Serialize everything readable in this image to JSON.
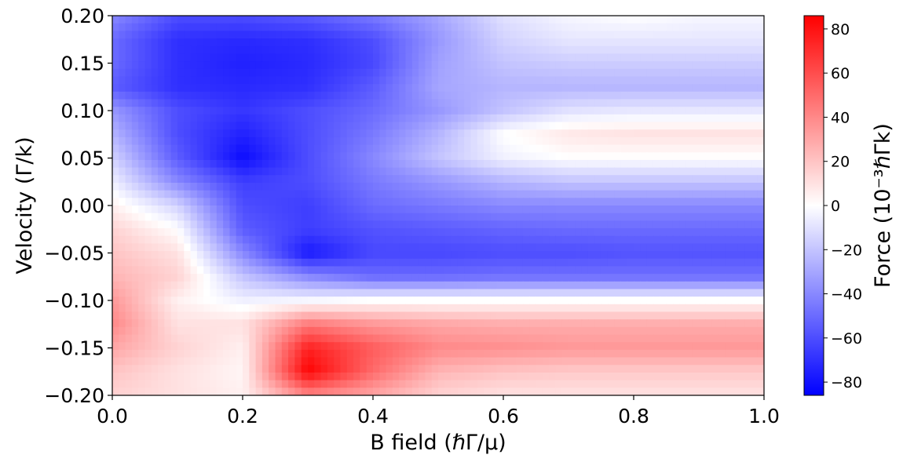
{
  "chart_data": {
    "type": "heatmap",
    "title": "",
    "xlabel": "B field (ℏΓ/μ)",
    "ylabel": "Velocity (Γ/k)",
    "xlim": [
      0.0,
      1.0
    ],
    "ylim": [
      -0.2,
      0.2
    ],
    "x_ticks": [
      0.0,
      0.2,
      0.4,
      0.6,
      0.8,
      1.0
    ],
    "x_tick_labels": [
      "0.0",
      "0.2",
      "0.4",
      "0.6",
      "0.8",
      "1.0"
    ],
    "y_ticks": [
      -0.2,
      -0.15,
      -0.1,
      -0.05,
      0.0,
      0.05,
      0.1,
      0.15,
      0.2
    ],
    "y_tick_labels": [
      "−0.20",
      "−0.15",
      "−0.10",
      "−0.05",
      "0.00",
      "0.05",
      "0.10",
      "0.15",
      "0.20"
    ],
    "colorbar": {
      "label": "Force (10⁻³ℏΓk)",
      "range": [
        -86,
        86
      ],
      "ticks": [
        -80,
        -60,
        -40,
        -20,
        0,
        20,
        40,
        60,
        80
      ],
      "tick_labels": [
        "−80",
        "−60",
        "−40",
        "−20",
        "0",
        "20",
        "40",
        "60",
        "80"
      ],
      "colormap": "bwr",
      "colors": [
        "#0000ff",
        "#ffffff",
        "#ff0000"
      ]
    },
    "grid": {
      "x": [
        0.0,
        0.1,
        0.2,
        0.3,
        0.4,
        0.5,
        0.6,
        0.7,
        0.8,
        0.9,
        1.0
      ],
      "y": [
        0.2,
        0.175,
        0.15,
        0.125,
        0.1,
        0.075,
        0.05,
        0.025,
        0.0,
        -0.025,
        -0.05,
        -0.075,
        -0.1,
        -0.125,
        -0.15,
        -0.175,
        -0.2
      ],
      "z": [
        [
          -40,
          -60,
          -60,
          -55,
          -45,
          -30,
          -10,
          -3,
          0,
          -3,
          -3
        ],
        [
          -50,
          -70,
          -72,
          -70,
          -60,
          -35,
          -15,
          -8,
          -8,
          -8,
          -8
        ],
        [
          -50,
          -70,
          -75,
          -72,
          -62,
          -32,
          -20,
          -17,
          -17,
          -17,
          -17
        ],
        [
          -55,
          -70,
          -72,
          -70,
          -55,
          -30,
          -25,
          -25,
          -25,
          -25,
          -25
        ],
        [
          -35,
          -60,
          -68,
          -60,
          -50,
          -35,
          -20,
          -10,
          -8,
          -8,
          -8
        ],
        [
          -25,
          -60,
          -75,
          -60,
          -45,
          -25,
          0,
          8,
          10,
          10,
          10
        ],
        [
          -15,
          -55,
          -82,
          -60,
          -40,
          -20,
          -5,
          0,
          0,
          0,
          0
        ],
        [
          -5,
          -40,
          -65,
          -60,
          -45,
          -35,
          -25,
          -20,
          -20,
          -20,
          -20
        ],
        [
          5,
          -15,
          -60,
          -65,
          -50,
          -45,
          -40,
          -40,
          -40,
          -40,
          -40
        ],
        [
          15,
          0,
          -55,
          -65,
          -58,
          -55,
          -52,
          -50,
          -50,
          -50,
          -50
        ],
        [
          20,
          10,
          -40,
          -78,
          -62,
          -62,
          -60,
          -60,
          -58,
          -58,
          -58
        ],
        [
          25,
          15,
          -20,
          -40,
          -50,
          -50,
          -48,
          -48,
          -48,
          -48,
          -48
        ],
        [
          35,
          5,
          -5,
          -3,
          0,
          0,
          0,
          0,
          0,
          0,
          0
        ],
        [
          40,
          10,
          10,
          45,
          35,
          30,
          28,
          28,
          28,
          28,
          28
        ],
        [
          30,
          15,
          5,
          75,
          55,
          40,
          38,
          35,
          35,
          35,
          35
        ],
        [
          20,
          10,
          3,
          85,
          50,
          25,
          20,
          18,
          18,
          18,
          18
        ],
        [
          15,
          10,
          5,
          40,
          30,
          15,
          10,
          10,
          10,
          10,
          10
        ]
      ]
    }
  }
}
